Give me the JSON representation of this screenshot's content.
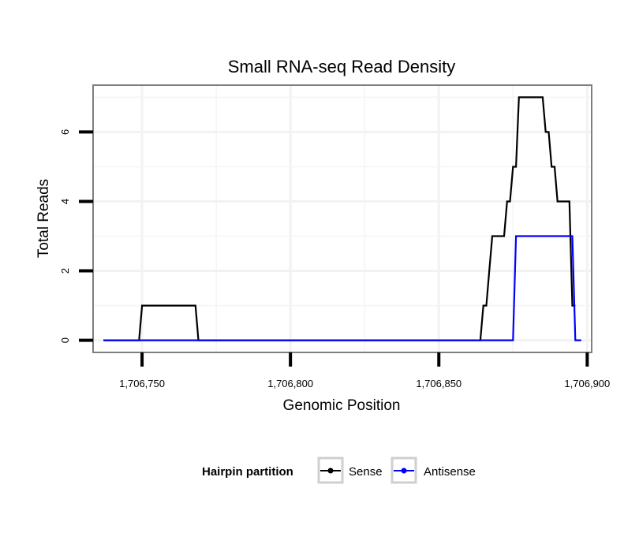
{
  "chart_data": {
    "type": "line",
    "title": "Small RNA-seq Read Density",
    "xlabel": "Genomic Position",
    "ylabel": "Total Reads",
    "xlim": [
      1706733.5,
      1706901.5
    ],
    "ylim": [
      -0.35,
      7.35
    ],
    "x_ticks": [
      1706750,
      1706800,
      1706850,
      1706900
    ],
    "x_tick_labels": [
      "1,706,750",
      "1,706,800",
      "1,706,850",
      "1,706,900"
    ],
    "y_ticks": [
      0,
      2,
      4,
      6
    ],
    "y_tick_labels": [
      "0",
      "2",
      "4",
      "6"
    ],
    "grid": true,
    "legend_title": "Hairpin partition",
    "legend_position": "bottom",
    "series": [
      {
        "name": "Sense",
        "color": "#000000",
        "x": [
          1706737,
          1706749,
          1706750,
          1706768,
          1706769,
          1706864,
          1706865,
          1706866,
          1706867,
          1706868,
          1706872,
          1706873,
          1706874,
          1706875,
          1706876,
          1706877,
          1706878,
          1706885,
          1706886,
          1706887,
          1706888,
          1706889,
          1706890,
          1706894,
          1706895,
          1706896
        ],
        "values": [
          0,
          0,
          1,
          1,
          0,
          0,
          1,
          1,
          2,
          3,
          3,
          4,
          4,
          5,
          5,
          7,
          7,
          7,
          6,
          6,
          5,
          5,
          4,
          4,
          1,
          1
        ]
      },
      {
        "name": "Antisense",
        "color": "#0000ff",
        "x": [
          1706737,
          1706875,
          1706876,
          1706895,
          1706896,
          1706898
        ],
        "values": [
          0,
          0,
          3,
          3,
          0,
          0
        ]
      }
    ]
  }
}
